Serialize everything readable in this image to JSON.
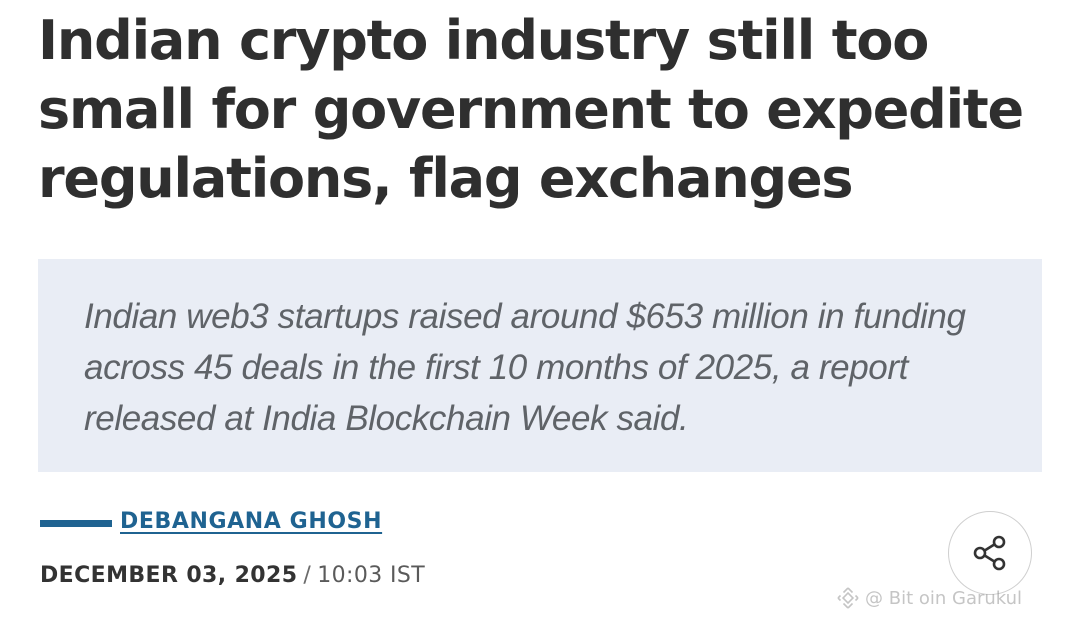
{
  "article": {
    "headline": "Indian crypto industry still too small for government to expedite regulations, flag exchanges",
    "summary": "Indian web3 startups raised around $653 million in funding across 45 deals in the first 10 months of 2025, a report released at India Blockchain Week said.",
    "author": "DEBANGANA GHOSH",
    "date": "DECEMBER 03, 2025",
    "separator": "/",
    "time": "10:03 IST"
  },
  "share": {
    "icon": "share-icon"
  },
  "watermark": {
    "text": "@ Bit  oin Garukul",
    "icon": "binance-logo-icon"
  },
  "colors": {
    "headline": "#2f2f2f",
    "summary_bg": "#e9edf5",
    "summary_text": "#5f6368",
    "accent": "#1f6391"
  }
}
